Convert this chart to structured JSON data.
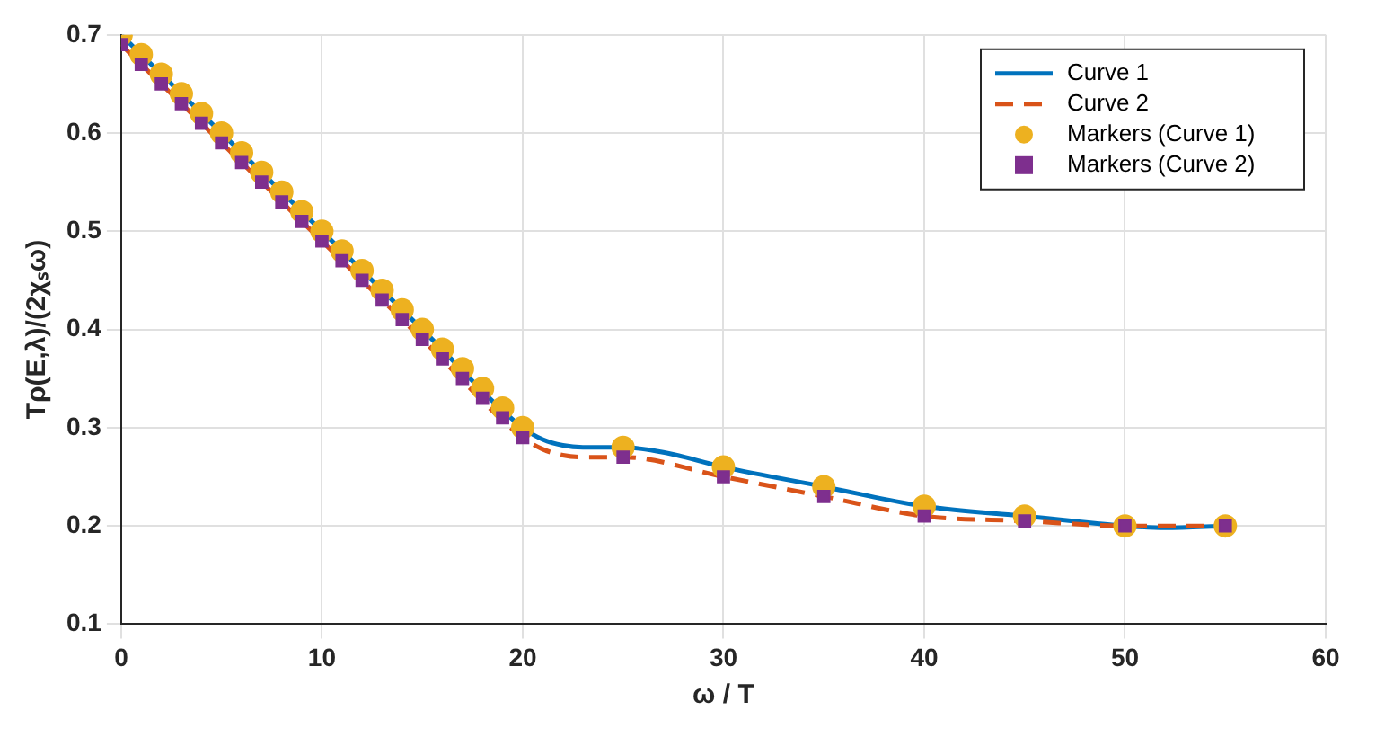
{
  "chart_data": {
    "type": "line",
    "xlabel": "ω / T",
    "ylabel": "Tρ(E,λ)/(2χₛω)",
    "xlim": [
      0,
      60
    ],
    "xticks": [
      0,
      10,
      20,
      30,
      40,
      50,
      60
    ],
    "ylim": [
      0.1,
      0.7
    ],
    "yticks": [
      0.1,
      0.2,
      0.3,
      0.4,
      0.5,
      0.6,
      0.7
    ],
    "grid": true,
    "legend": "top right",
    "series": [
      {
        "name": "Curve 1",
        "color": "#0072bd",
        "line_style": "solid",
        "marker": "none",
        "x": [
          0,
          5,
          10,
          15,
          20,
          21,
          22,
          23,
          25,
          27,
          30,
          35,
          40,
          45,
          50,
          52,
          55
        ],
        "values": [
          0.7,
          0.6,
          0.5,
          0.4,
          0.3,
          0.288,
          0.282,
          0.28,
          0.28,
          0.275,
          0.26,
          0.24,
          0.22,
          0.21,
          0.2,
          0.198,
          0.2
        ]
      },
      {
        "name": "Curve 2",
        "color": "#d95319",
        "line_style": "dashed",
        "marker": "none",
        "x": [
          0,
          5,
          10,
          15,
          20,
          21,
          22,
          23,
          25,
          30,
          35,
          40,
          45,
          50,
          55
        ],
        "values": [
          0.69,
          0.59,
          0.49,
          0.39,
          0.29,
          0.278,
          0.272,
          0.27,
          0.27,
          0.25,
          0.23,
          0.21,
          0.205,
          0.2,
          0.2
        ]
      },
      {
        "name": "Markers (Curve 1)",
        "type": "scatter",
        "color": "#edb120",
        "marker": "circle",
        "x": [
          0,
          1,
          2,
          3,
          4,
          5,
          6,
          7,
          8,
          9,
          10,
          11,
          12,
          13,
          14,
          15,
          16,
          17,
          18,
          19,
          20,
          25,
          30,
          35,
          40,
          45,
          50,
          55
        ],
        "values": [
          0.7,
          0.68,
          0.66,
          0.64,
          0.62,
          0.6,
          0.58,
          0.56,
          0.54,
          0.52,
          0.5,
          0.48,
          0.46,
          0.44,
          0.42,
          0.4,
          0.38,
          0.36,
          0.34,
          0.32,
          0.3,
          0.28,
          0.26,
          0.24,
          0.22,
          0.21,
          0.2,
          0.2
        ]
      },
      {
        "name": "Markers (Curve 2)",
        "type": "scatter",
        "color": "#7e2f8e",
        "marker": "square",
        "x": [
          0,
          1,
          2,
          3,
          4,
          5,
          6,
          7,
          8,
          9,
          10,
          11,
          12,
          13,
          14,
          15,
          16,
          17,
          18,
          19,
          20,
          25,
          30,
          35,
          40,
          45,
          50,
          55
        ],
        "values": [
          0.69,
          0.67,
          0.65,
          0.63,
          0.61,
          0.59,
          0.57,
          0.55,
          0.53,
          0.51,
          0.49,
          0.47,
          0.45,
          0.43,
          0.41,
          0.39,
          0.37,
          0.35,
          0.33,
          0.31,
          0.29,
          0.27,
          0.25,
          0.23,
          0.21,
          0.205,
          0.2,
          0.2
        ]
      }
    ]
  }
}
